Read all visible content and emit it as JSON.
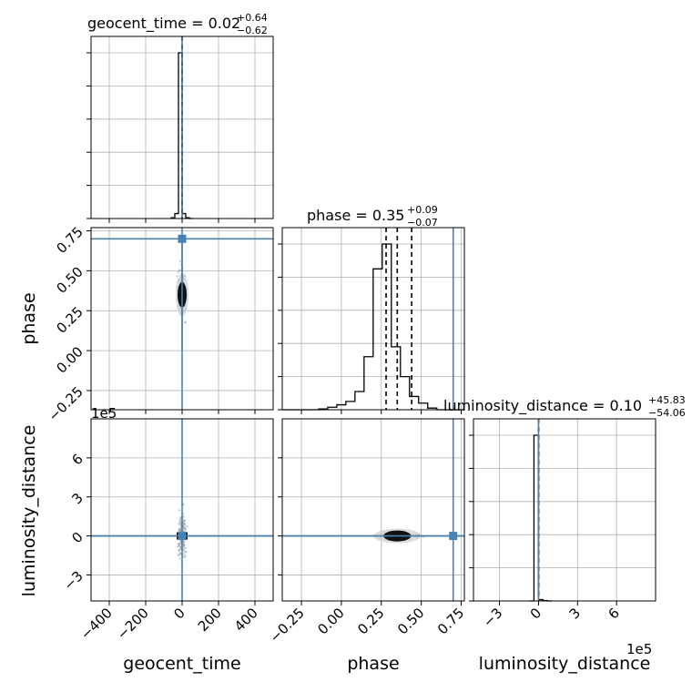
{
  "chart_data": {
    "type": "corner",
    "parameters": [
      "geocent_time",
      "phase",
      "luminosity_distance"
    ],
    "truth_color": "#4682b4",
    "truths": {
      "geocent_time": 0,
      "phase": 0.7,
      "luminosity_distance": 0
    },
    "sci_offset": "1e5",
    "panels": {
      "geocent_time": {
        "title_main": "geocent_time = 0.02",
        "title_plus": "+0.64",
        "title_minus": "−0.62",
        "xlim": [
          -500,
          500
        ],
        "xticks": [
          -400,
          -200,
          0,
          200,
          400
        ],
        "xticklabels": [
          "−400",
          "−200",
          "0",
          "200",
          "400"
        ],
        "quantiles": [
          -0.6,
          0.02,
          0.66
        ],
        "hist_edges": [
          -60,
          -40,
          -20,
          0,
          20,
          40,
          60
        ],
        "hist_counts": [
          0.005,
          0.03,
          1.0,
          0.03,
          0.005,
          0
        ]
      },
      "phase": {
        "title_main": "phase = 0.35",
        "title_plus": "+0.09",
        "title_minus": "−0.07",
        "xlim": [
          -0.37,
          0.77
        ],
        "xticks": [
          -0.25,
          0.0,
          0.25,
          0.5,
          0.75
        ],
        "xticklabels": [
          "−0.25",
          "0.00",
          "0.25",
          "0.50",
          "0.75"
        ],
        "quantiles": [
          0.28,
          0.35,
          0.44
        ],
        "hist_edges": [
          -0.37,
          -0.3131,
          -0.2562,
          -0.1993,
          -0.1424,
          -0.0855,
          -0.0286,
          0.0283,
          0.0852,
          0.1421,
          0.199,
          0.2559,
          0.3128,
          0.3697,
          0.4266,
          0.4835,
          0.5404,
          0.5973,
          0.6542,
          0.7111,
          0.77
        ],
        "hist_counts": [
          0,
          0,
          0,
          0,
          0.005,
          0.015,
          0.03,
          0.05,
          0.11,
          0.32,
          0.85,
          1.0,
          0.38,
          0.2,
          0.08,
          0.04,
          0.01,
          0,
          0,
          0
        ]
      },
      "luminosity_distance": {
        "title_main": "luminosity_distance = 0.10",
        "title_plus": "+45.83",
        "title_minus": "−54.06",
        "xlim": [
          -5,
          9
        ],
        "xticks": [
          -3,
          0,
          3,
          6
        ],
        "xticklabels": [
          "−3",
          "0",
          "3",
          "6"
        ],
        "quantiles": [
          -0.0005,
          1e-06,
          0.00046
        ],
        "hist_edges": [
          -0.7,
          -0.35,
          0,
          0.35,
          0.7,
          1.05
        ],
        "hist_counts": [
          0,
          1.0,
          0.008,
          0.002,
          0
        ]
      }
    },
    "row_yaxes": {
      "phase": {
        "ylim": [
          -0.37,
          0.77
        ],
        "yticks": [
          -0.25,
          0.0,
          0.25,
          0.5,
          0.75
        ],
        "yticklabels": [
          "−0.25",
          "0.00",
          "0.25",
          "0.50",
          "0.75"
        ]
      },
      "luminosity_distance": {
        "ylim": [
          -5,
          9
        ],
        "yticks": [
          -3,
          0,
          3,
          6
        ],
        "yticklabels": [
          "−3",
          "0",
          "3",
          "6"
        ]
      }
    },
    "blobs": {
      "geocent_time_vs_phase": {
        "x": 0,
        "y": 0.35
      },
      "phase_vs_luminosity_distance": {
        "x": 0.35,
        "y": 0
      },
      "geocent_time_vs_luminosity_distance": {
        "x": 0,
        "y": 0
      }
    },
    "grid": true
  }
}
